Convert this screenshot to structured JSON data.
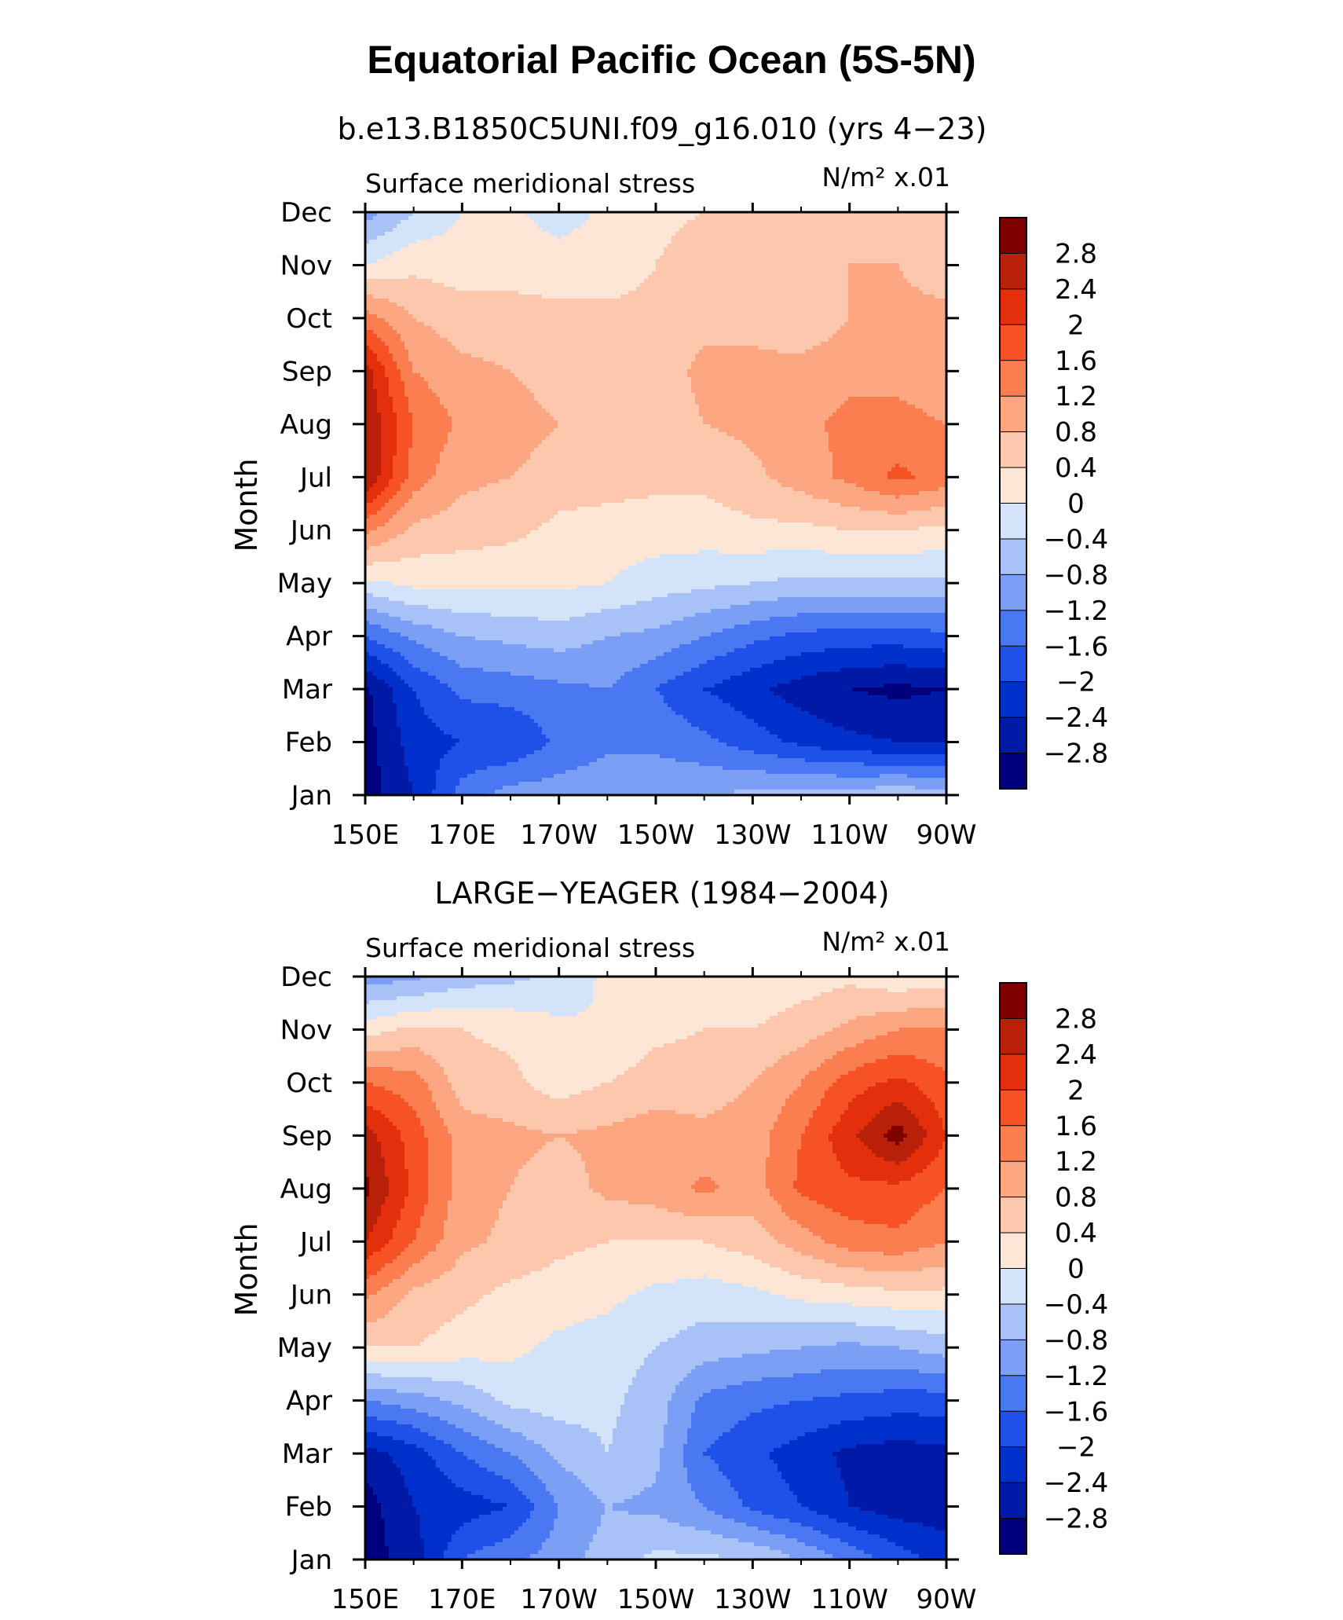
{
  "figure": {
    "title": "Equatorial Pacific Ocean (5S-5N)"
  },
  "chart_data": [
    {
      "type": "heatmap",
      "subtitle": "b.e13.B1850C5UNI.f09_g16.010 (yrs 4−23)",
      "panel_left_label": "Surface meridional stress",
      "panel_right_label": "N/m² x.01",
      "ylabel": "Month",
      "xlabel": "",
      "x_tick_labels": [
        "150E",
        "170E",
        "170W",
        "150W",
        "130W",
        "110W",
        "90W"
      ],
      "y_tick_labels": [
        "Jan",
        "Feb",
        "Mar",
        "Apr",
        "May",
        "Jun",
        "Jul",
        "Aug",
        "Sep",
        "Oct",
        "Nov",
        "Dec"
      ],
      "x_range_deg_east": [
        150,
        270
      ],
      "grid": false,
      "colorbar": {
        "placement": "right",
        "levels": [
          -2.8,
          -2.4,
          -2,
          -1.6,
          -1.2,
          -0.8,
          -0.4,
          0,
          0.4,
          0.8,
          1.2,
          1.6,
          2,
          2.4,
          2.8
        ],
        "labels": [
          "2.8",
          "2.4",
          "2",
          "1.6",
          "1.2",
          "0.8",
          "0.4",
          "0",
          "−0.4",
          "−0.8",
          "−1.2",
          "−1.6",
          "−2",
          "−2.4",
          "−2.8"
        ]
      },
      "lon_columns": [
        "150E",
        "160E",
        "170E",
        "180",
        "170W",
        "160W",
        "150W",
        "140W",
        "130W",
        "120W",
        "110W",
        "100W",
        "90W"
      ],
      "values_by_month": [
        [
          -3.0,
          -2.4,
          -1.4,
          -1.0,
          -1.0,
          -0.9,
          -0.9,
          -0.8,
          -0.7,
          -0.6,
          -0.6,
          -0.5,
          -0.6
        ],
        [
          -3.0,
          -2.2,
          -2.0,
          -2.0,
          -1.5,
          -1.3,
          -1.3,
          -1.5,
          -1.8,
          -2.1,
          -2.3,
          -2.4,
          -2.4
        ],
        [
          -2.9,
          -2.0,
          -1.5,
          -1.4,
          -1.3,
          -1.2,
          -1.6,
          -2.0,
          -2.3,
          -2.6,
          -2.8,
          -2.9,
          -2.8
        ],
        [
          -1.6,
          -1.1,
          -0.8,
          -0.7,
          -0.6,
          -0.8,
          -0.9,
          -1.2,
          -1.5,
          -1.7,
          -1.8,
          -1.8,
          -1.7
        ],
        [
          -0.1,
          0.1,
          0.1,
          0.1,
          0.1,
          0.0,
          -0.2,
          -0.3,
          -0.4,
          -0.5,
          -0.5,
          -0.5,
          -0.5
        ],
        [
          1.3,
          0.7,
          0.6,
          0.5,
          0.3,
          0.2,
          0.2,
          0.2,
          0.3,
          0.3,
          0.4,
          0.4,
          0.3
        ],
        [
          2.8,
          1.4,
          0.9,
          0.8,
          0.6,
          0.6,
          0.5,
          0.5,
          0.7,
          1.0,
          1.3,
          1.7,
          1.4
        ],
        [
          2.8,
          1.6,
          1.1,
          1.0,
          0.8,
          0.6,
          0.6,
          0.8,
          0.9,
          1.1,
          1.3,
          1.3,
          1.2
        ],
        [
          2.6,
          1.2,
          0.9,
          0.8,
          0.6,
          0.6,
          0.6,
          0.9,
          0.9,
          1.0,
          1.1,
          1.1,
          1.0
        ],
        [
          1.4,
          0.8,
          0.6,
          0.6,
          0.5,
          0.5,
          0.5,
          0.7,
          0.7,
          0.4,
          0.8,
          0.9,
          0.9
        ],
        [
          0.0,
          0.3,
          0.2,
          0.2,
          0.2,
          0.2,
          0.4,
          0.6,
          0.8,
          0.8,
          0.8,
          0.8,
          0.6
        ],
        [
          -1.0,
          -0.4,
          0.0,
          0.1,
          -0.2,
          0.1,
          0.3,
          0.4,
          0.4,
          0.4,
          0.5,
          0.5,
          0.5
        ]
      ]
    },
    {
      "type": "heatmap",
      "subtitle": "LARGE−YEAGER (1984−2004)",
      "panel_left_label": "Surface meridional stress",
      "panel_right_label": "N/m² x.01",
      "ylabel": "Month",
      "xlabel": "",
      "x_tick_labels": [
        "150E",
        "170E",
        "170W",
        "150W",
        "130W",
        "110W",
        "90W"
      ],
      "y_tick_labels": [
        "Jan",
        "Feb",
        "Mar",
        "Apr",
        "May",
        "Jun",
        "Jul",
        "Aug",
        "Sep",
        "Oct",
        "Nov",
        "Dec"
      ],
      "x_range_deg_east": [
        150,
        270
      ],
      "grid": false,
      "colorbar": {
        "placement": "right",
        "levels": [
          -2.8,
          -2.4,
          -2,
          -1.6,
          -1.2,
          -0.8,
          -0.4,
          0,
          0.4,
          0.8,
          1.2,
          1.6,
          2,
          2.4,
          2.8
        ],
        "labels": [
          "2.8",
          "2.4",
          "2",
          "1.6",
          "1.2",
          "0.8",
          "0.4",
          "0",
          "−0.4",
          "−0.8",
          "−1.2",
          "−1.6",
          "−2",
          "−2.4",
          "−2.8"
        ]
      },
      "lon_columns": [
        "150E",
        "160E",
        "170E",
        "180",
        "170W",
        "160W",
        "150W",
        "140W",
        "130W",
        "120W",
        "110W",
        "100W",
        "90W"
      ],
      "values_by_month": [
        [
          -3.0,
          -2.6,
          -1.6,
          -1.3,
          -1.0,
          -0.6,
          -0.3,
          -0.3,
          -0.4,
          -0.8,
          -1.3,
          -1.8,
          -2.2
        ],
        [
          -3.0,
          -2.4,
          -2.2,
          -2.0,
          -1.2,
          -0.8,
          -0.9,
          -1.2,
          -1.7,
          -2.0,
          -2.4,
          -2.6,
          -2.6
        ],
        [
          -2.6,
          -2.2,
          -1.6,
          -1.2,
          -0.7,
          -0.4,
          -0.7,
          -1.6,
          -1.9,
          -2.2,
          -2.5,
          -2.6,
          -2.5
        ],
        [
          -1.2,
          -1.0,
          -0.7,
          -0.3,
          -0.2,
          -0.3,
          -0.6,
          -1.3,
          -1.5,
          -1.6,
          -1.7,
          -1.8,
          -1.8
        ],
        [
          0.4,
          0.4,
          0.2,
          0.1,
          -0.1,
          -0.2,
          -0.4,
          -0.6,
          -0.7,
          -0.8,
          -0.9,
          -0.8,
          -0.6
        ],
        [
          1.3,
          0.7,
          0.5,
          0.3,
          0.2,
          0.1,
          -0.1,
          -0.2,
          -0.1,
          0.1,
          0.2,
          0.3,
          0.3
        ],
        [
          2.4,
          1.6,
          0.9,
          0.7,
          0.5,
          0.4,
          0.4,
          0.4,
          0.6,
          1.0,
          1.4,
          1.5,
          1.2
        ],
        [
          2.9,
          1.9,
          1.0,
          0.8,
          0.6,
          0.9,
          1.0,
          1.3,
          1.0,
          1.7,
          1.9,
          1.9,
          1.6
        ],
        [
          2.6,
          1.8,
          1.0,
          0.9,
          0.8,
          0.9,
          1.0,
          0.9,
          1.0,
          1.6,
          2.3,
          3.0,
          2.0
        ],
        [
          1.6,
          1.4,
          0.6,
          0.5,
          0.2,
          0.4,
          0.6,
          0.6,
          0.8,
          1.2,
          1.8,
          2.1,
          1.7
        ],
        [
          0.2,
          0.5,
          0.4,
          0.3,
          0.1,
          0.0,
          0.3,
          0.4,
          0.4,
          0.6,
          0.9,
          1.2,
          1.2
        ],
        [
          -1.0,
          -0.9,
          -0.6,
          -0.5,
          -0.3,
          0.1,
          0.1,
          0.1,
          0.1,
          0.2,
          0.3,
          0.1,
          0.2
        ]
      ]
    }
  ]
}
